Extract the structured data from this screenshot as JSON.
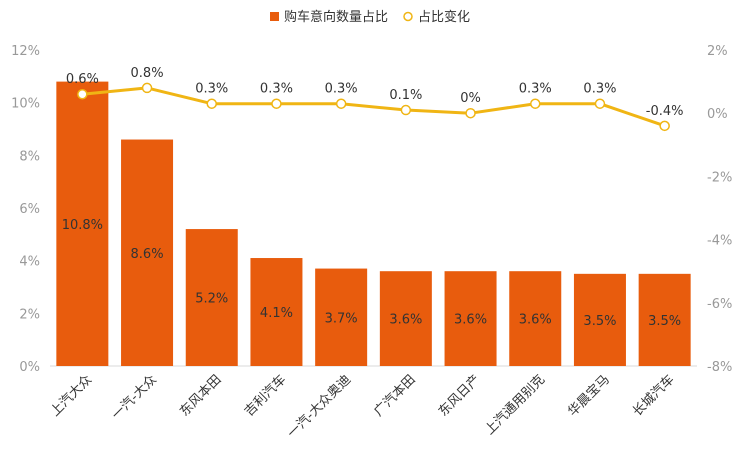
{
  "chart_data": {
    "type": "bar",
    "categories": [
      "上汽大众",
      "一汽-大众",
      "东风本田",
      "吉利汽车",
      "一汽-大众奥迪",
      "广汽本田",
      "东风日产",
      "上汽通用别克",
      "华晨宝马",
      "长城汽车"
    ],
    "series": [
      {
        "name": "购车意向数量占比",
        "type": "bar",
        "axis": "left",
        "values": [
          10.8,
          8.6,
          5.2,
          4.1,
          3.7,
          3.6,
          3.6,
          3.6,
          3.5,
          3.5
        ],
        "labels": [
          "10.8%",
          "8.6%",
          "5.2%",
          "4.1%",
          "3.7%",
          "3.6%",
          "3.6%",
          "3.6%",
          "3.5%",
          "3.5%"
        ],
        "color": "#e85c0d"
      },
      {
        "name": "占比变化",
        "type": "line",
        "axis": "right",
        "values": [
          0.6,
          0.8,
          0.3,
          0.3,
          0.3,
          0.1,
          0.0,
          0.3,
          0.3,
          -0.4
        ],
        "labels": [
          "0.6%",
          "0.8%",
          "0.3%",
          "0.3%",
          "0.3%",
          "0.1%",
          "0%",
          "0.3%",
          "0.3%",
          "-0.4%"
        ],
        "color": "#f0b514"
      }
    ],
    "y_left": {
      "ylim": [
        0,
        12
      ],
      "ticks": [
        "0%",
        "2%",
        "4%",
        "6%",
        "8%",
        "10%",
        "12%"
      ]
    },
    "y_right": {
      "ylim": [
        -8,
        2
      ],
      "ticks": [
        "-8%",
        "-6%",
        "-4%",
        "-2%",
        "0%",
        "2%"
      ]
    },
    "legend_position": "top-center",
    "grid": false
  }
}
